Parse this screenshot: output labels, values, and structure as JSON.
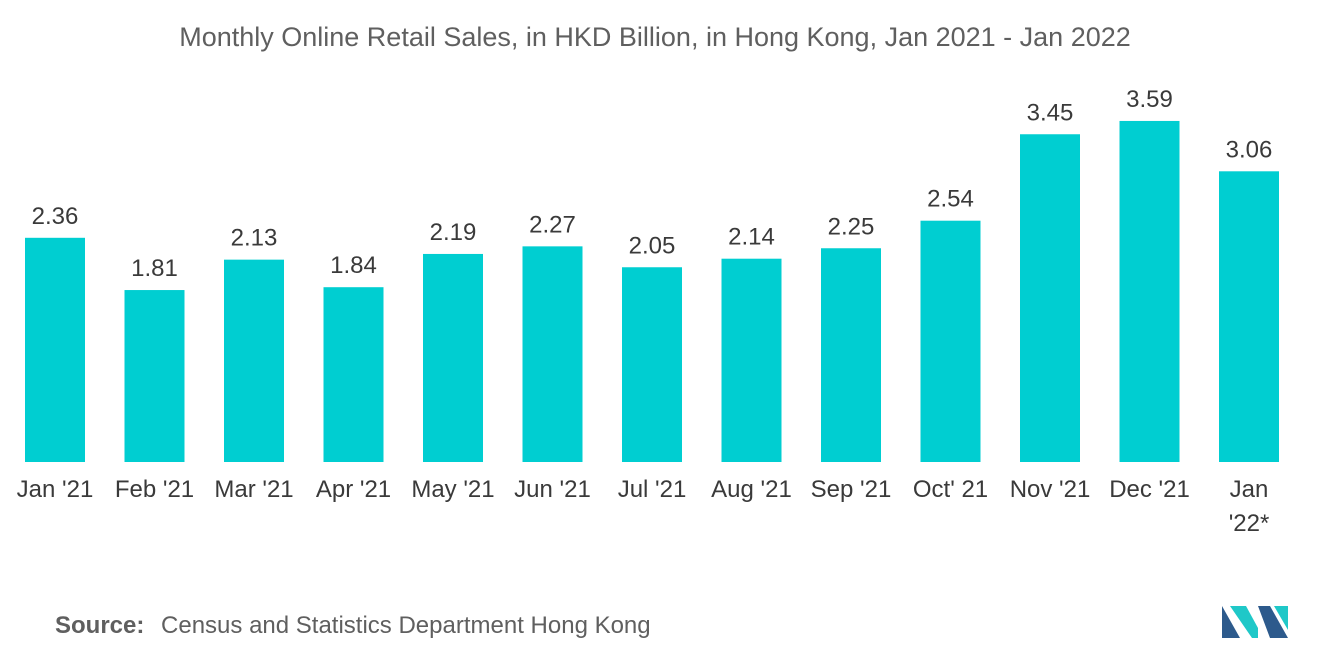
{
  "chart_data": {
    "type": "bar",
    "title": "Monthly Online Retail Sales, in HKD Billion, in Hong Kong, Jan 2021 - Jan 2022",
    "categories": [
      [
        "Jan '21"
      ],
      [
        "Feb '21"
      ],
      [
        "Mar '21"
      ],
      [
        "Apr '21"
      ],
      [
        "May '21"
      ],
      [
        "Jun '21"
      ],
      [
        "Jul '21"
      ],
      [
        "Aug '21"
      ],
      [
        "Sep '21"
      ],
      [
        "Oct' 21"
      ],
      [
        "Nov '21"
      ],
      [
        "Dec '21"
      ],
      [
        "Jan",
        "'22*"
      ]
    ],
    "values": [
      2.36,
      1.81,
      2.13,
      1.84,
      2.19,
      2.27,
      2.05,
      2.14,
      2.25,
      2.54,
      3.45,
      3.59,
      3.06
    ],
    "value_labels": [
      "2.36",
      "1.81",
      "2.13",
      "1.84",
      "2.19",
      "2.27",
      "2.05",
      "2.14",
      "2.25",
      "2.54",
      "3.45",
      "3.59",
      "3.06"
    ],
    "xlabel": "",
    "ylabel": "",
    "ylim": [
      0,
      4
    ],
    "grid": false,
    "bar_color": "#00CED1"
  },
  "source": {
    "label": "Source:",
    "text": "Census and Statistics Department Hong Kong"
  },
  "logo": {
    "icon": "mordor-intelligence-logo-icon",
    "colors": [
      "#2D5A8C",
      "#1FC8C8"
    ]
  }
}
